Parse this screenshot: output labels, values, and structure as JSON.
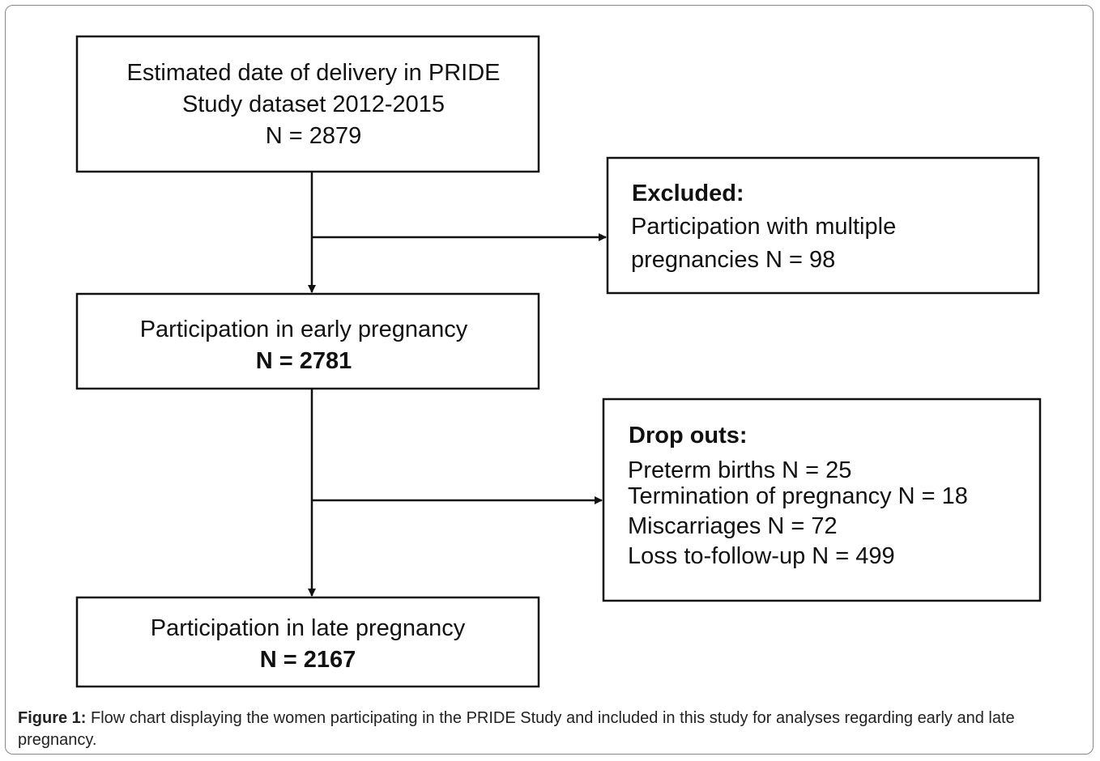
{
  "nodes": [
    {
      "lines": [
        "Estimated date of delivery in PRIDE",
        "Study dataset 2012-2015",
        "N = 2879"
      ]
    },
    {
      "lines": [
        "Participation in early pregnancy"
      ],
      "count": "N = 2781"
    },
    {
      "lines": [
        "Participation in late pregnancy"
      ],
      "count": "N = 2167"
    }
  ],
  "side_boxes": [
    {
      "title": "Excluded:",
      "lines": [
        "Participation with multiple",
        "pregnancies N = 98"
      ]
    },
    {
      "title": "Drop outs:",
      "lines": [
        "Preterm births N = 25",
        "Termination of pregnancy N = 18",
        "Miscarriages N = 72",
        "Loss to-follow-up N = 499"
      ]
    }
  ],
  "caption": {
    "label": "Figure 1:",
    "text": "Flow chart displaying the women participating in the PRIDE Study and included in this study for analyses regarding early and late pregnancy."
  }
}
